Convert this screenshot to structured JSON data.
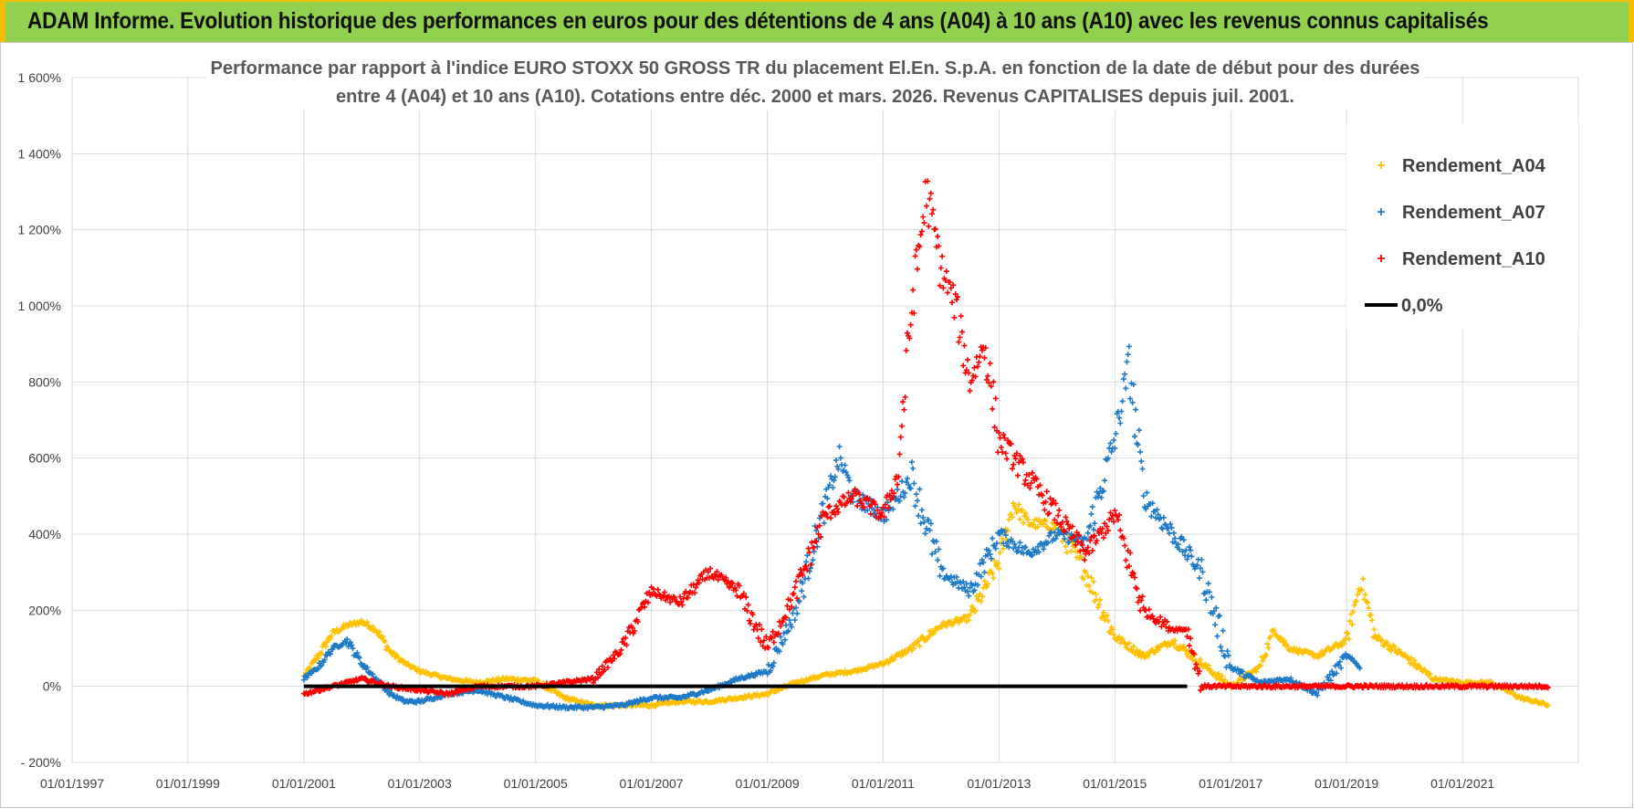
{
  "header": {
    "title": "ADAM Informe. Evolution historique des performances en euros pour des détentions de 4 ans (A04) à 10 ans (A10) avec les revenus connus capitalisés"
  },
  "chart_data": {
    "type": "scatter",
    "title_lines": [
      "Performance par rapport à l'indice EURO STOXX 50 GROSS TR  du placement El.En. S.p.A. en fonction de la date de début pour des durées",
      "entre 4 (A04) et 10 ans (A10). Cotations entre déc. 2000 et mars. 2026. Revenus CAPITALISES depuis juil. 2001."
    ],
    "xlabel": "",
    "ylabel": "",
    "x_tick_labels": [
      "01/01/1997",
      "01/01/1999",
      "01/01/2001",
      "01/01/2003",
      "01/01/2005",
      "01/01/2007",
      "01/01/2009",
      "01/01/2011",
      "01/01/2013",
      "01/01/2015",
      "01/01/2017",
      "01/01/2019",
      "01/01/2021"
    ],
    "xlim": [
      "1997-01-01",
      "2023-01-01"
    ],
    "y_tick_labels": [
      "- 200%",
      "0%",
      "200%",
      "400%",
      "600%",
      "800%",
      "1 000%",
      "1 200%",
      "1 400%",
      "1 600%"
    ],
    "ylim": [
      -200,
      1600
    ],
    "grid": true,
    "legend_position": "top-right",
    "series": [
      {
        "name": "Rendement_A04",
        "color": "#ffc000",
        "marker": "plus",
        "x": [
          "2001-01-01",
          "2001-04-01",
          "2001-07-01",
          "2001-10-01",
          "2002-01-01",
          "2002-04-01",
          "2002-07-01",
          "2002-10-01",
          "2003-01-01",
          "2003-07-01",
          "2004-01-01",
          "2004-07-01",
          "2005-01-01",
          "2005-07-01",
          "2006-01-01",
          "2006-07-01",
          "2007-01-01",
          "2007-07-01",
          "2008-01-01",
          "2008-07-01",
          "2009-01-01",
          "2009-07-01",
          "2010-01-01",
          "2010-07-01",
          "2011-01-01",
          "2011-07-01",
          "2012-01-01",
          "2012-07-01",
          "2013-01-01",
          "2013-04-01",
          "2013-07-01",
          "2014-01-01",
          "2014-07-01",
          "2015-01-01",
          "2015-07-01",
          "2016-01-01",
          "2016-07-01",
          "2017-01-01",
          "2017-07-01",
          "2017-10-01",
          "2018-01-01",
          "2018-07-01",
          "2019-01-01",
          "2019-04-01",
          "2019-07-01",
          "2020-01-01",
          "2020-07-01",
          "2021-01-01",
          "2021-07-01",
          "2022-01-01",
          "2022-07-01"
        ],
        "y": [
          25,
          80,
          140,
          160,
          170,
          150,
          90,
          60,
          40,
          20,
          10,
          20,
          15,
          -30,
          -50,
          -50,
          -50,
          -40,
          -40,
          -30,
          -20,
          10,
          30,
          40,
          60,
          100,
          160,
          180,
          330,
          480,
          430,
          420,
          300,
          130,
          80,
          120,
          60,
          0,
          50,
          150,
          100,
          80,
          120,
          280,
          130,
          80,
          20,
          10,
          10,
          -30,
          -50
        ]
      },
      {
        "name": "Rendement_A07",
        "color": "#1f7ac7",
        "marker": "plus",
        "x": [
          "2001-01-01",
          "2001-04-01",
          "2001-07-01",
          "2001-10-01",
          "2002-01-01",
          "2002-04-01",
          "2002-07-01",
          "2002-10-01",
          "2003-01-01",
          "2003-07-01",
          "2004-01-01",
          "2004-07-01",
          "2005-01-01",
          "2005-07-01",
          "2006-01-01",
          "2006-07-01",
          "2007-01-01",
          "2007-07-01",
          "2008-01-01",
          "2008-07-01",
          "2009-01-01",
          "2009-07-01",
          "2010-01-01",
          "2010-04-01",
          "2010-07-01",
          "2011-01-01",
          "2011-07-01",
          "2012-01-01",
          "2012-07-01",
          "2013-01-01",
          "2013-07-01",
          "2014-01-01",
          "2014-07-01",
          "2015-01-01",
          "2015-04-01",
          "2015-07-01",
          "2016-01-01",
          "2016-07-01",
          "2017-01-01",
          "2017-07-01",
          "2018-01-01",
          "2018-07-01",
          "2019-01-01",
          "2019-04-01"
        ],
        "y": [
          20,
          50,
          100,
          120,
          60,
          20,
          -20,
          -40,
          -40,
          -20,
          -10,
          -30,
          -50,
          -55,
          -55,
          -50,
          -30,
          -30,
          -10,
          20,
          40,
          200,
          480,
          600,
          500,
          450,
          550,
          300,
          250,
          400,
          350,
          400,
          380,
          650,
          850,
          500,
          400,
          300,
          50,
          10,
          20,
          -20,
          80,
          50
        ]
      },
      {
        "name": "Rendement_A10",
        "color": "#ff0000",
        "marker": "plus",
        "x": [
          "2001-01-01",
          "2001-07-01",
          "2002-01-01",
          "2002-07-01",
          "2003-01-01",
          "2003-07-01",
          "2004-01-01",
          "2004-07-01",
          "2005-01-01",
          "2005-07-01",
          "2006-01-01",
          "2006-07-01",
          "2007-01-01",
          "2007-07-01",
          "2008-01-01",
          "2008-07-01",
          "2009-01-01",
          "2009-07-01",
          "2010-01-01",
          "2010-07-01",
          "2011-01-01",
          "2011-04-01",
          "2011-07-01",
          "2011-10-01",
          "2012-01-01",
          "2012-04-01",
          "2012-07-01",
          "2012-10-01",
          "2013-01-01",
          "2013-07-01",
          "2014-01-01",
          "2014-07-01",
          "2015-01-01",
          "2015-07-01",
          "2016-01-01",
          "2016-04-01",
          "2016-07-01",
          "2017-01-01",
          "2017-07-01",
          "2018-01-01",
          "2018-07-01",
          "2019-01-01",
          "2019-07-01",
          "2020-01-01",
          "2020-07-01",
          "2021-01-01",
          "2021-07-01",
          "2022-01-01",
          "2022-07-01"
        ],
        "y": [
          -20,
          0,
          20,
          0,
          -10,
          -20,
          0,
          0,
          0,
          10,
          20,
          100,
          250,
          220,
          300,
          250,
          100,
          250,
          450,
          500,
          450,
          550,
          1000,
          1300,
          1100,
          1000,
          800,
          900,
          650,
          550,
          450,
          350,
          450,
          200,
          150,
          150,
          0,
          0,
          0,
          0,
          0,
          0,
          0,
          0,
          0,
          0,
          0,
          0,
          0
        ]
      },
      {
        "name": "0,0%",
        "color": "#000000",
        "marker": "line",
        "x": [
          "2001-01-01",
          "2016-04-01"
        ],
        "y": [
          0,
          0
        ]
      }
    ]
  }
}
